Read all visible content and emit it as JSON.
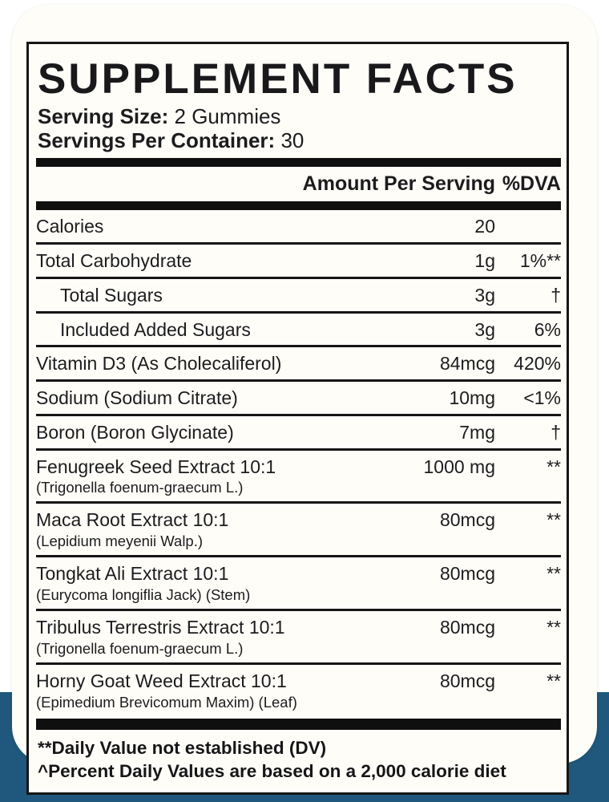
{
  "label": {
    "title": "SUPPLEMENT FACTS",
    "serving_size_label": "Serving Size:",
    "serving_size_value": "2 Gummies",
    "servings_per_container_label": "Servings Per Container:",
    "servings_per_container_value": "30",
    "amount_header": "Amount Per Serving",
    "dv_header": "%DVA",
    "rows": [
      {
        "name": "Calories",
        "amount": "20",
        "dv": "",
        "indent": false
      },
      {
        "name": "Total Carbohydrate",
        "amount": "1g",
        "dv": "1%**",
        "indent": false
      },
      {
        "name": "Total Sugars",
        "amount": "3g",
        "dv": "†",
        "indent": true
      },
      {
        "name": "Included Added Sugars",
        "amount": "3g",
        "dv": "6%",
        "indent": true
      },
      {
        "name": "Vitamin D3 (As Cholecaliferol)",
        "amount": "84mcg",
        "dv": "420%",
        "indent": false
      },
      {
        "name": "Sodium (Sodium Citrate)",
        "amount": "10mg",
        "dv": "<1%",
        "indent": false
      },
      {
        "name": "Boron (Boron Glycinate)",
        "amount": "7mg",
        "dv": "†",
        "indent": false
      },
      {
        "name": "Fenugreek Seed Extract 10:1",
        "subname": "(Trigonella foenum-graecum L.)",
        "amount": "1000 mg",
        "dv": "**",
        "indent": false
      },
      {
        "name": "Maca Root Extract 10:1",
        "subname": "(Lepidium meyenii Walp.)",
        "amount": "80mcg",
        "dv": "**",
        "indent": false
      },
      {
        "name": "Tongkat Ali Extract 10:1",
        "subname": "(Eurycoma longiflia Jack) (Stem)",
        "amount": "80mcg",
        "dv": "**",
        "indent": false
      },
      {
        "name": "Tribulus Terrestris Extract 10:1",
        "subname": "(Trigonella foenum-graecum L.)",
        "amount": "80mcg",
        "dv": "**",
        "indent": false
      },
      {
        "name": "Horny Goat Weed Extract 10:1",
        "subname": "(Epimedium Brevicomum Maxim) (Leaf)",
        "amount": "80mcg",
        "dv": "**",
        "indent": false
      }
    ],
    "footnotes": [
      "**Daily Value not established (DV)",
      "^Percent Daily Values are based on a 2,000 calorie diet"
    ]
  },
  "colors": {
    "background_blue": "#1F587C",
    "card_background": "#FFFDF8",
    "ink": "#161616"
  }
}
